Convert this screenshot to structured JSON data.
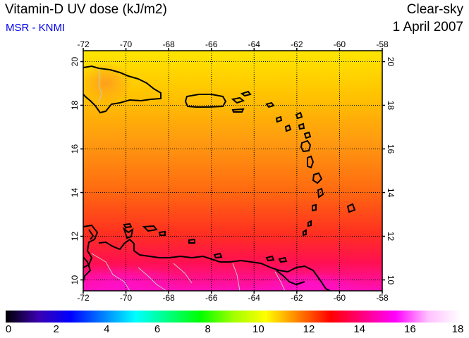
{
  "header": {
    "title": "Vitamin-D UV dose (kJ/m2)",
    "source": "MSR - KNMI",
    "condition": "Clear-sky",
    "date": "1 April 2007"
  },
  "map": {
    "lon_range": [
      -72,
      -58
    ],
    "lat_range": [
      9.5,
      20.5
    ],
    "lon_ticks": [
      "-72",
      "-70",
      "-68",
      "-66",
      "-64",
      "-62",
      "-60",
      "-58"
    ],
    "lat_ticks": [
      "10",
      "12",
      "14",
      "16",
      "18",
      "20"
    ],
    "grid": "dotted",
    "field_colors": {
      "north": "#ffe000",
      "middle": "#ff8a10",
      "south": "#ff1030",
      "coast": "#ff10b0",
      "coastline": "#000000",
      "borders": "#c0c0c0"
    }
  },
  "colorbar": {
    "range": [
      0,
      18
    ],
    "ticks": [
      "0",
      "2",
      "4",
      "6",
      "8",
      "10",
      "12",
      "14",
      "16",
      "18"
    ],
    "stops": [
      "#000000",
      "#3a00b0",
      "#0000ff",
      "#0080ff",
      "#00ffff",
      "#00ff80",
      "#00ff00",
      "#a0ff00",
      "#ffff00",
      "#ff8000",
      "#ff0000",
      "#ff0080",
      "#ff00ff",
      "#ffc0ff",
      "#ffffff"
    ]
  }
}
